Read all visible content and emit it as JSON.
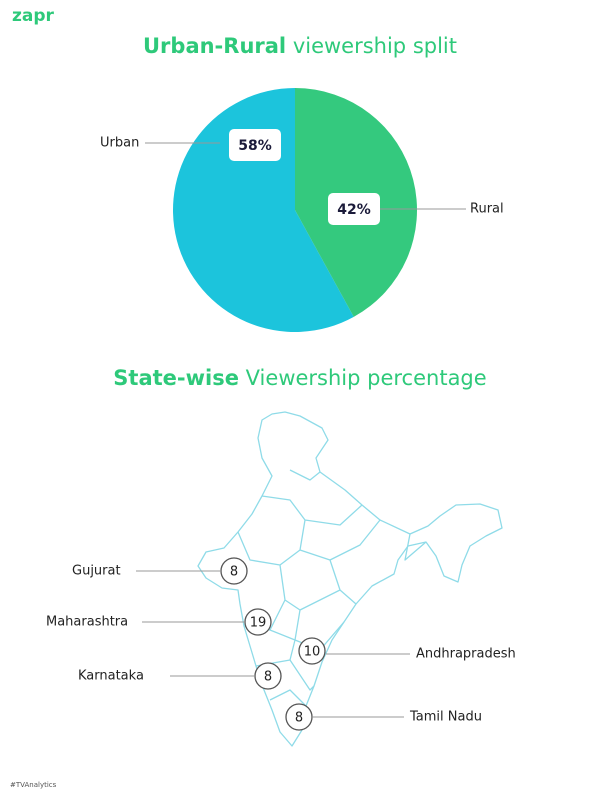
{
  "brand": "zapr",
  "chart_data": {
    "type": "pie",
    "title_emphasis": "Urban-Rural",
    "title": "viewership split",
    "categories": [
      "Urban",
      "Rural"
    ],
    "values": [
      58,
      42
    ],
    "value_labels": [
      "58%",
      "42%"
    ],
    "colors": [
      "#1cc4dc",
      "#34c97e"
    ]
  },
  "state_map": {
    "title_emphasis": "State-wise",
    "title": "Viewership percentage",
    "states": [
      {
        "name": "Gujurat",
        "value": 8
      },
      {
        "name": "Maharashtra",
        "value": 19
      },
      {
        "name": "Andhrapradesh",
        "value": 10
      },
      {
        "name": "Karnataka",
        "value": 8
      },
      {
        "name": "Tamil Nadu",
        "value": 8
      }
    ]
  },
  "footer": "#TVAnalytics"
}
